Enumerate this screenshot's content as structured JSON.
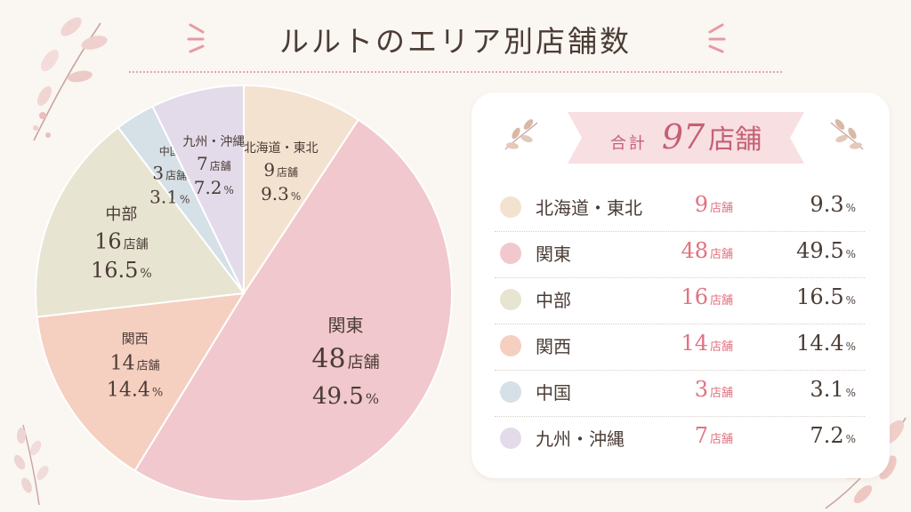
{
  "title": "ルルトのエリア別店舗数",
  "summary": {
    "label": "合計",
    "total": "97",
    "unit": "店舗"
  },
  "units": {
    "store": "店舗",
    "percent": "%"
  },
  "colors": {
    "accent": "#e1727f",
    "rule": "#e3a9ae",
    "text": "#4a3c35",
    "background": "#faf6f1"
  },
  "chart_data": {
    "type": "pie",
    "title": "ルルトのエリア別店舗数",
    "total": 97,
    "slices": [
      {
        "name": "北海道・東北",
        "count": 9,
        "percent": 9.3,
        "color": "#f3e2d0"
      },
      {
        "name": "関東",
        "count": 48,
        "percent": 49.5,
        "color": "#f1c8cd"
      },
      {
        "name": "関西",
        "count": 14,
        "percent": 14.4,
        "color": "#f5cfc0"
      },
      {
        "name": "中部",
        "count": 16,
        "percent": 16.5,
        "color": "#e7e4d2"
      },
      {
        "name": "中国",
        "count": 3,
        "percent": 3.1,
        "color": "#d6e0e7"
      },
      {
        "name": "九州・沖縄",
        "count": 7,
        "percent": 7.2,
        "color": "#e3dbea"
      }
    ]
  },
  "legend": [
    {
      "name": "北海道・東北",
      "count": "9",
      "percent": "9.3",
      "color": "#f3e2d0"
    },
    {
      "name": "関東",
      "count": "48",
      "percent": "49.5",
      "color": "#f1c8cd"
    },
    {
      "name": "中部",
      "count": "16",
      "percent": "16.5",
      "color": "#e7e4d2"
    },
    {
      "name": "関西",
      "count": "14",
      "percent": "14.4",
      "color": "#f5cfc0"
    },
    {
      "name": "中国",
      "count": "3",
      "percent": "3.1",
      "color": "#d6e0e7"
    },
    {
      "name": "九州・沖縄",
      "count": "7",
      "percent": "7.2",
      "color": "#e3dbea"
    }
  ]
}
